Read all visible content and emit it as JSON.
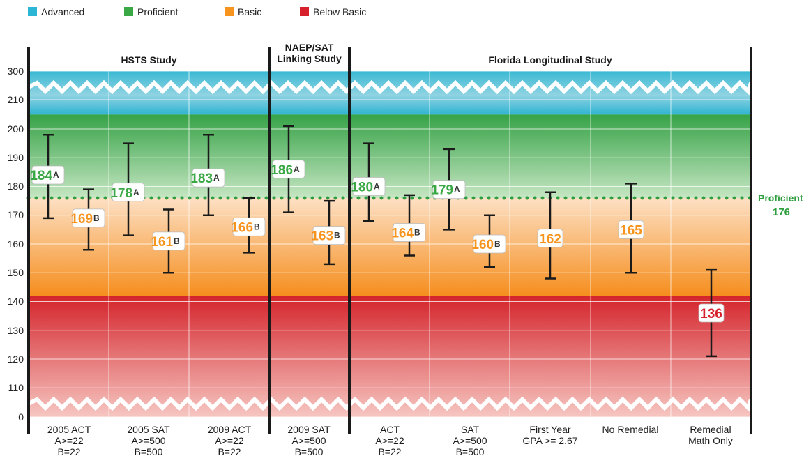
{
  "chart_data": {
    "type": "errorbar",
    "legend": [
      {
        "label": "Advanced",
        "color": "#2bb6d6"
      },
      {
        "label": "Proficient",
        "color": "#3aa845"
      },
      {
        "label": "Basic",
        "color": "#f7941d"
      },
      {
        "label": "Below Basic",
        "color": "#d7212c"
      }
    ],
    "y_ticks": [
      "300",
      "210",
      "200",
      "190",
      "180",
      "170",
      "160",
      "150",
      "140",
      "130",
      "120",
      "110",
      "0"
    ],
    "y_axis_note": "broken axis: 0 to 110 and 210 to 300 compressed",
    "bands": [
      {
        "label": "Advanced",
        "from": 205,
        "to": 300,
        "color": "#2bb6d6"
      },
      {
        "label": "Proficient",
        "from": 176,
        "to": 205,
        "color": "#3aa845"
      },
      {
        "label": "Basic",
        "from": 142,
        "to": 176,
        "color": "#f7941d"
      },
      {
        "label": "Below Basic",
        "from": 0,
        "to": 142,
        "color": "#d7212c"
      }
    ],
    "proficient_line": {
      "value": 176,
      "label": "Proficient",
      "value_label": "176"
    },
    "studies": [
      {
        "title_lines": [
          "HSTS Study"
        ],
        "from": 0,
        "to": 3
      },
      {
        "title_lines": [
          "NAEP/SAT",
          "Linking Study"
        ],
        "from": 3,
        "to": 4
      },
      {
        "title_lines": [
          "Florida Longitudinal Study"
        ],
        "from": 4,
        "to": 9
      }
    ],
    "categories": [
      {
        "lines": [
          "2005 ACT",
          "A>=22",
          "B=22"
        ]
      },
      {
        "lines": [
          "2005 SAT",
          "A>=500",
          "B=500"
        ]
      },
      {
        "lines": [
          "2009 ACT",
          "A>=22",
          "B=22"
        ]
      },
      {
        "lines": [
          "2009 SAT",
          "A>=500",
          "B=500"
        ]
      },
      {
        "lines": [
          "ACT",
          "A>=22",
          "B=22"
        ]
      },
      {
        "lines": [
          "SAT",
          "A>=500",
          "B=500"
        ]
      },
      {
        "lines": [
          "First Year",
          "GPA >= 2.67"
        ]
      },
      {
        "lines": [
          "No Remedial"
        ]
      },
      {
        "lines": [
          "Remedial",
          "Math Only"
        ]
      }
    ],
    "points": [
      {
        "cat": 0,
        "slot": "A",
        "value": 184,
        "low": 169,
        "high": 198,
        "label": "184",
        "suffix": "A",
        "level": "Proficient"
      },
      {
        "cat": 0,
        "slot": "B",
        "value": 169,
        "low": 158,
        "high": 179,
        "label": "169",
        "suffix": "B",
        "level": "Basic"
      },
      {
        "cat": 1,
        "slot": "A",
        "value": 178,
        "low": 163,
        "high": 195,
        "label": "178",
        "suffix": "A",
        "level": "Proficient"
      },
      {
        "cat": 1,
        "slot": "B",
        "value": 161,
        "low": 150,
        "high": 172,
        "label": "161",
        "suffix": "B",
        "level": "Basic"
      },
      {
        "cat": 2,
        "slot": "A",
        "value": 183,
        "low": 170,
        "high": 198,
        "label": "183",
        "suffix": "A",
        "level": "Proficient"
      },
      {
        "cat": 2,
        "slot": "B",
        "value": 166,
        "low": 157,
        "high": 176,
        "label": "166",
        "suffix": "B",
        "level": "Basic"
      },
      {
        "cat": 3,
        "slot": "A",
        "value": 186,
        "low": 171,
        "high": 201,
        "label": "186",
        "suffix": "A",
        "level": "Proficient"
      },
      {
        "cat": 3,
        "slot": "B",
        "value": 163,
        "low": 153,
        "high": 175,
        "label": "163",
        "suffix": "B",
        "level": "Basic"
      },
      {
        "cat": 4,
        "slot": "A",
        "value": 180,
        "low": 168,
        "high": 195,
        "label": "180",
        "suffix": "A",
        "level": "Proficient"
      },
      {
        "cat": 4,
        "slot": "B",
        "value": 164,
        "low": 156,
        "high": 177,
        "label": "164",
        "suffix": "B",
        "level": "Basic"
      },
      {
        "cat": 5,
        "slot": "A",
        "value": 179,
        "low": 165,
        "high": 193,
        "label": "179",
        "suffix": "A",
        "level": "Proficient"
      },
      {
        "cat": 5,
        "slot": "B",
        "value": 160,
        "low": 152,
        "high": 170,
        "label": "160",
        "suffix": "B",
        "level": "Basic"
      },
      {
        "cat": 6,
        "slot": "C",
        "value": 162,
        "low": 148,
        "high": 178,
        "label": "162",
        "suffix": "",
        "level": "Basic"
      },
      {
        "cat": 7,
        "slot": "C",
        "value": 165,
        "low": 150,
        "high": 181,
        "label": "165",
        "suffix": "",
        "level": "Basic"
      },
      {
        "cat": 8,
        "slot": "C",
        "value": 136,
        "low": 121,
        "high": 151,
        "label": "136",
        "suffix": "",
        "level": "Below Basic"
      }
    ],
    "grid": true
  }
}
